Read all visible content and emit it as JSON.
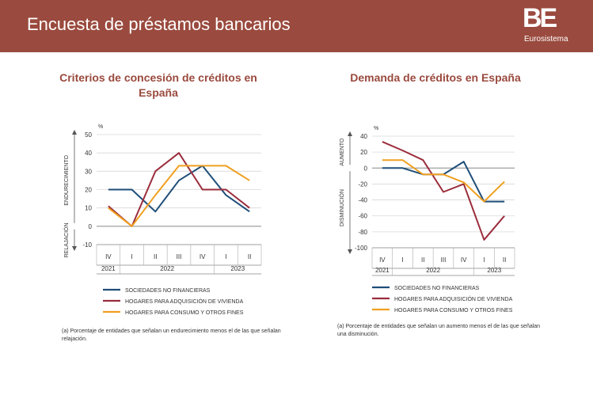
{
  "header": {
    "title": "Encuesta de préstamos bancarios",
    "background": "#9a4a3e",
    "logo": "BE",
    "logo_sub": "Eurosistema"
  },
  "colors": {
    "title": "#9a4a3e",
    "series": [
      "#1f4e79",
      "#9b2d3c",
      "#f0a020"
    ],
    "axis": "#555555",
    "grid": "#d8d8d8"
  },
  "chart_data": [
    {
      "type": "line",
      "title": "Criterios de concesión de créditos en España",
      "unit": "%",
      "ylim": [
        -10,
        50
      ],
      "yticks": [
        -10,
        0,
        10,
        20,
        30,
        40,
        50
      ],
      "top_axis_label": "ENDURECIMIENTO",
      "bottom_axis_label": "RELAJACIÓN",
      "categories": [
        "IV",
        "I",
        "II",
        "III",
        "IV",
        "I",
        "II"
      ],
      "years": [
        {
          "label": "2021",
          "from": 0,
          "to": 0
        },
        {
          "label": "2022",
          "from": 1,
          "to": 4
        },
        {
          "label": "2023",
          "from": 5,
          "to": 6
        }
      ],
      "series": [
        {
          "name": "SOCIEDADES NO FINANCIERAS",
          "values": [
            20,
            20,
            8,
            25,
            33,
            17,
            8
          ]
        },
        {
          "name": "HOGARES PARA ADQUISICIÓN DE VIVIENDA",
          "values": [
            11,
            0,
            30,
            40,
            20,
            20,
            10
          ]
        },
        {
          "name": "HOGARES PARA CONSUMO Y OTROS FINES",
          "values": [
            10,
            0,
            17,
            33,
            33,
            33,
            25
          ]
        }
      ],
      "note": "(a) Porcentaje de entidades que señalan un endurecimiento menos el de las que señalan relajación."
    },
    {
      "type": "line",
      "title": "Demanda de créditos en España",
      "unit": "%",
      "ylim": [
        -100,
        40
      ],
      "yticks": [
        -100,
        -80,
        -60,
        -40,
        -20,
        0,
        20,
        40
      ],
      "top_axis_label": "AUMENTO",
      "bottom_axis_label": "DISMINUCIÓN",
      "categories": [
        "IV",
        "I",
        "II",
        "III",
        "IV",
        "I",
        "II"
      ],
      "years": [
        {
          "label": "2021",
          "from": 0,
          "to": 0
        },
        {
          "label": "2022",
          "from": 1,
          "to": 4
        },
        {
          "label": "2023",
          "from": 5,
          "to": 6
        }
      ],
      "series": [
        {
          "name": "SOCIEDADES NO FINANCIERAS",
          "values": [
            0,
            0,
            -8,
            -8,
            8,
            -42,
            -42
          ]
        },
        {
          "name": "HOGARES PARA ADQUISICIÓN DE VIVIENDA",
          "values": [
            33,
            22,
            10,
            -30,
            -20,
            -90,
            -60
          ]
        },
        {
          "name": "HOGARES PARA CONSUMO Y OTROS FINES",
          "values": [
            10,
            10,
            -8,
            -8,
            -18,
            -42,
            -17
          ]
        }
      ],
      "note": "(a) Porcentaje de entidades que señalan un aumento menos el de las que señalan una disminución."
    }
  ]
}
